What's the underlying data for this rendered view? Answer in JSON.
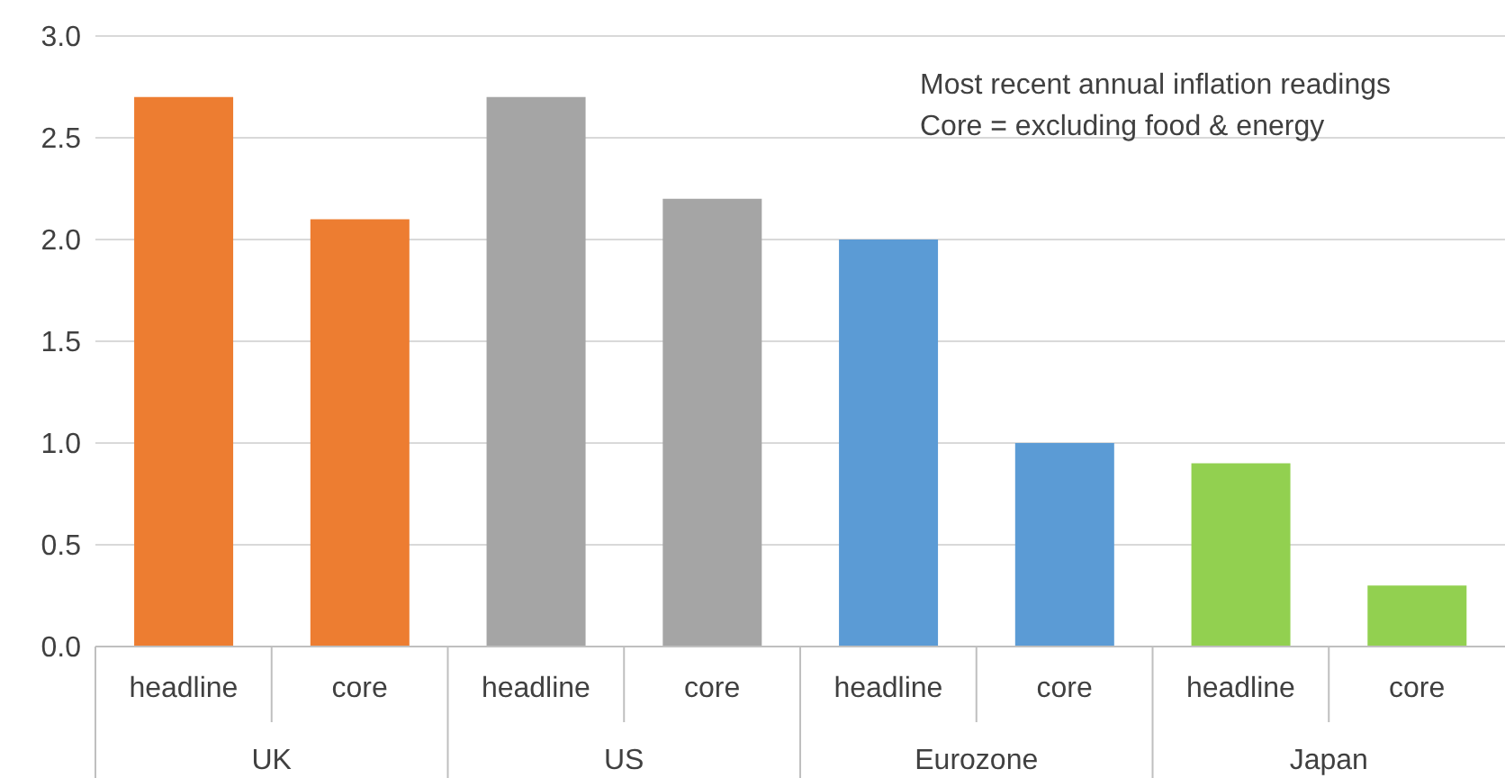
{
  "chart_data": {
    "type": "bar",
    "categories": [
      "headline",
      "core",
      "headline",
      "core",
      "headline",
      "core",
      "headline",
      "core"
    ],
    "values": [
      2.7,
      2.1,
      2.7,
      2.2,
      2.0,
      1.0,
      0.9,
      0.3
    ],
    "colors": [
      "#ed7d31",
      "#ed7d31",
      "#a5a5a5",
      "#a5a5a5",
      "#5b9bd5",
      "#5b9bd5",
      "#92d050",
      "#92d050"
    ],
    "ylim": [
      0,
      3
    ],
    "yticks": [
      {
        "value": 0,
        "label": "0.0"
      },
      {
        "value": 0.5,
        "label": "0.5"
      },
      {
        "value": 1,
        "label": "1.0"
      },
      {
        "value": 1.5,
        "label": "1.5"
      },
      {
        "value": 2,
        "label": "2.0"
      },
      {
        "value": 2.5,
        "label": "2.5"
      },
      {
        "value": 3,
        "label": "3.0"
      }
    ],
    "grid": "y",
    "annotations": [
      "Most recent annual inflation readings",
      "Core = excluding food & energy",
      "UK",
      "US",
      "Eurozone",
      "Japan"
    ]
  }
}
